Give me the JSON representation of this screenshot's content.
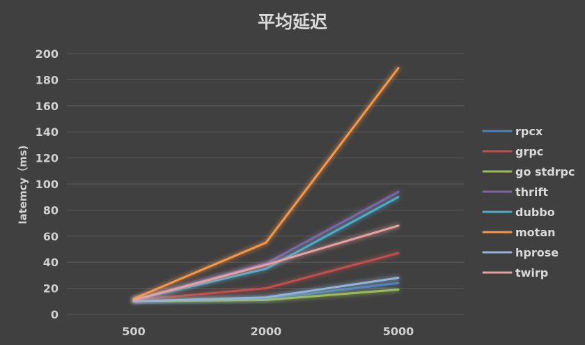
{
  "chart_data": {
    "type": "line",
    "title": "平均延迟",
    "ylabel": "latemcy（ms)",
    "xlabel": "",
    "categories": [
      "500",
      "2000",
      "5000"
    ],
    "ylim": [
      0,
      200
    ],
    "yticks": [
      0,
      20,
      40,
      60,
      80,
      100,
      120,
      140,
      160,
      180,
      200
    ],
    "grid": true,
    "legend_position": "right",
    "series": [
      {
        "name": "rpcx",
        "color": "#4f81bd",
        "values": [
          10,
          12,
          24
        ]
      },
      {
        "name": "grpc",
        "color": "#c0504d",
        "values": [
          11,
          20,
          47
        ]
      },
      {
        "name": "go stdrpc",
        "color": "#9bbb59",
        "values": [
          10,
          11,
          19
        ]
      },
      {
        "name": "thrift",
        "color": "#8064a2",
        "values": [
          11,
          39,
          94
        ]
      },
      {
        "name": "dubbo",
        "color": "#4bacc6",
        "values": [
          11,
          35,
          90
        ]
      },
      {
        "name": "motan",
        "color": "#f79646",
        "values": [
          12,
          55,
          189
        ]
      },
      {
        "name": "hprose",
        "color": "#95b3d7",
        "values": [
          10,
          13,
          28
        ]
      },
      {
        "name": "twirp",
        "color": "#e6a0a0",
        "values": [
          11,
          38,
          68
        ]
      }
    ]
  }
}
